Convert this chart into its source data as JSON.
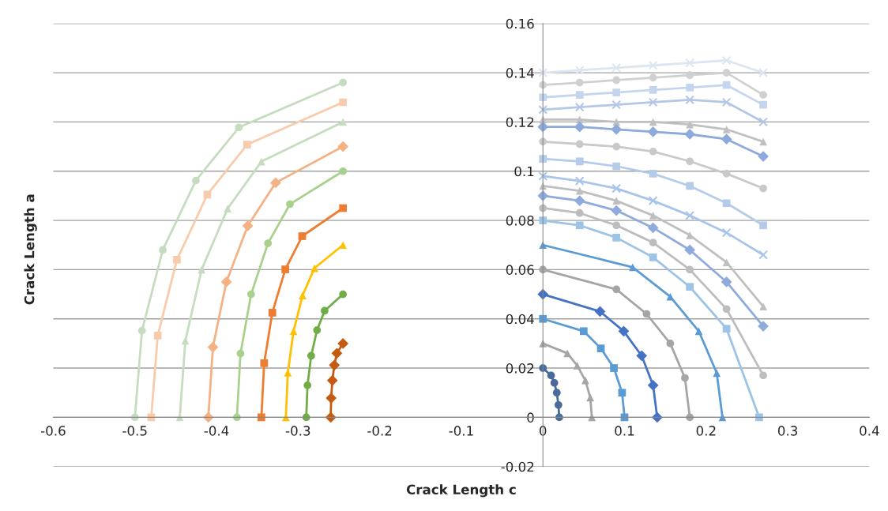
{
  "chart_data": {
    "type": "line",
    "xlabel": "Crack Length c",
    "ylabel": "Crack Length a",
    "xlim": [
      -0.6,
      0.4
    ],
    "xticks": [
      -0.6,
      -0.5,
      -0.4,
      -0.3,
      -0.2,
      -0.1,
      0,
      0.1,
      0.2,
      0.3,
      0.4
    ],
    "ylim": [
      -0.02,
      0.16
    ],
    "yticks": [
      -0.02,
      0,
      0.02,
      0.04,
      0.06,
      0.08,
      0.1,
      0.12,
      0.14,
      0.16
    ],
    "grid": "y",
    "line_style": "solid",
    "series": [
      {
        "color": "#c5dcc0",
        "marker": "circle",
        "x": [
          -0.245,
          -0.3725,
          -0.4253,
          -0.4658,
          -0.4913,
          -0.5
        ],
        "values": [
          0.136,
          0.1178,
          0.0962,
          0.068,
          0.0352,
          0
        ]
      },
      {
        "color": "#f8cbad",
        "marker": "square",
        "x": [
          -0.245,
          -0.3625,
          -0.4112,
          -0.4485,
          -0.472,
          -0.48
        ],
        "values": [
          0.128,
          0.1108,
          0.0905,
          0.064,
          0.0332,
          0
        ]
      },
      {
        "color": "#c5dcc0",
        "marker": "triangle",
        "x": [
          -0.245,
          -0.345,
          -0.3864,
          -0.4182,
          -0.4382,
          -0.445
        ],
        "values": [
          0.12,
          0.1039,
          0.0848,
          0.06,
          0.0311,
          0
        ]
      },
      {
        "color": "#f4b183",
        "marker": "diamond",
        "x": [
          -0.245,
          -0.3275,
          -0.3617,
          -0.3879,
          -0.4044,
          -0.41
        ],
        "values": [
          0.11,
          0.0953,
          0.0778,
          0.055,
          0.0285,
          0
        ]
      },
      {
        "color": "#a9d18e",
        "marker": "circle",
        "x": [
          -0.245,
          -0.31,
          -0.3369,
          -0.3576,
          -0.3706,
          -0.375
        ],
        "values": [
          0.1,
          0.0866,
          0.0707,
          0.05,
          0.0259,
          0
        ]
      },
      {
        "color": "#ed7d31",
        "marker": "square",
        "x": [
          -0.245,
          -0.295,
          -0.3157,
          -0.3316,
          -0.3416,
          -0.345
        ],
        "values": [
          0.085,
          0.0736,
          0.0601,
          0.0425,
          0.022,
          0
        ]
      },
      {
        "color": "#ffc000",
        "marker": "triangle",
        "x": [
          -0.245,
          -0.28,
          -0.2945,
          -0.3056,
          -0.3126,
          -0.315
        ],
        "values": [
          0.07,
          0.0606,
          0.0495,
          0.035,
          0.0181,
          0
        ]
      },
      {
        "color": "#70ad47",
        "marker": "circle",
        "x": [
          -0.245,
          -0.2675,
          -0.2768,
          -0.284,
          -0.2885,
          -0.29
        ],
        "values": [
          0.05,
          0.0433,
          0.0354,
          0.025,
          0.013,
          0
        ]
      },
      {
        "color": "#c55a11",
        "marker": "diamond",
        "x": [
          -0.245,
          -0.2525,
          -0.2556,
          -0.258,
          -0.2595,
          -0.26
        ],
        "values": [
          0.03,
          0.026,
          0.0212,
          0.015,
          0.0078,
          0
        ]
      },
      {
        "color": "#dce6f2",
        "marker": "cross",
        "x": [
          0,
          0.045,
          0.09,
          0.135,
          0.18,
          0.225,
          0.27
        ],
        "values": [
          0.14,
          0.141,
          0.142,
          0.143,
          0.144,
          0.145,
          0.14
        ]
      },
      {
        "color": "#d0d0d0",
        "marker": "circle",
        "x": [
          0,
          0.045,
          0.09,
          0.135,
          0.18,
          0.225,
          0.27
        ],
        "values": [
          0.135,
          0.136,
          0.137,
          0.138,
          0.139,
          0.14,
          0.131
        ]
      },
      {
        "color": "#c5d5ee",
        "marker": "square",
        "x": [
          0,
          0.045,
          0.09,
          0.135,
          0.18,
          0.225,
          0.27
        ],
        "values": [
          0.13,
          0.131,
          0.132,
          0.133,
          0.134,
          0.135,
          0.127
        ]
      },
      {
        "color": "#b4c7e7",
        "marker": "cross",
        "x": [
          0,
          0.045,
          0.09,
          0.135,
          0.18,
          0.225,
          0.27
        ],
        "values": [
          0.125,
          0.126,
          0.127,
          0.128,
          0.129,
          0.128,
          0.12
        ]
      },
      {
        "color": "#c0c0c0",
        "marker": "triangle",
        "x": [
          0,
          0.045,
          0.09,
          0.135,
          0.18,
          0.225,
          0.27
        ],
        "values": [
          0.121,
          0.121,
          0.12,
          0.12,
          0.119,
          0.117,
          0.112
        ]
      },
      {
        "color": "#8ea9db",
        "marker": "diamond",
        "x": [
          0,
          0.045,
          0.09,
          0.135,
          0.18,
          0.225,
          0.27
        ],
        "values": [
          0.118,
          0.118,
          0.117,
          0.116,
          0.115,
          0.113,
          0.106
        ]
      },
      {
        "color": "#c9c9c9",
        "marker": "circle",
        "x": [
          0,
          0.045,
          0.09,
          0.135,
          0.18,
          0.225,
          0.27
        ],
        "values": [
          0.112,
          0.111,
          0.11,
          0.108,
          0.104,
          0.099,
          0.093
        ]
      },
      {
        "color": "#b4cbe9",
        "marker": "square",
        "x": [
          0,
          0.045,
          0.09,
          0.135,
          0.18,
          0.225,
          0.27
        ],
        "values": [
          0.105,
          0.104,
          0.102,
          0.099,
          0.094,
          0.087,
          0.078
        ]
      },
      {
        "color": "#a9c4eb",
        "marker": "cross",
        "x": [
          0,
          0.045,
          0.09,
          0.135,
          0.18,
          0.225,
          0.27
        ],
        "values": [
          0.098,
          0.096,
          0.093,
          0.088,
          0.082,
          0.075,
          0.066
        ]
      },
      {
        "color": "#bfbfbf",
        "marker": "triangle",
        "x": [
          0,
          0.045,
          0.09,
          0.135,
          0.18,
          0.225,
          0.27
        ],
        "values": [
          0.094,
          0.092,
          0.088,
          0.082,
          0.074,
          0.063,
          0.045
        ]
      },
      {
        "color": "#8faadc",
        "marker": "diamond",
        "x": [
          0,
          0.045,
          0.09,
          0.135,
          0.18,
          0.225,
          0.27
        ],
        "values": [
          0.09,
          0.088,
          0.084,
          0.077,
          0.068,
          0.055,
          0.037
        ]
      },
      {
        "color": "#bdbdbd",
        "marker": "circle",
        "x": [
          0,
          0.045,
          0.09,
          0.135,
          0.18,
          0.225,
          0.27
        ],
        "values": [
          0.085,
          0.083,
          0.078,
          0.071,
          0.06,
          0.044,
          0.017
        ]
      },
      {
        "color": "#9dc3e6",
        "marker": "square",
        "x": [
          0,
          0.045,
          0.09,
          0.135,
          0.18,
          0.225,
          0.265
        ],
        "values": [
          0.08,
          0.078,
          0.073,
          0.065,
          0.053,
          0.036,
          0
        ]
      },
      {
        "color": "#5b9bd5",
        "marker": "triangle",
        "x": [
          0,
          0.11,
          0.156,
          0.191,
          0.213,
          0.22
        ],
        "values": [
          0.07,
          0.061,
          0.049,
          0.035,
          0.018,
          0
        ]
      },
      {
        "color": "#a5a5a5",
        "marker": "circle",
        "x": [
          0,
          0.09,
          0.127,
          0.156,
          0.174,
          0.18
        ],
        "values": [
          0.06,
          0.052,
          0.042,
          0.03,
          0.016,
          0
        ]
      },
      {
        "color": "#4472c4",
        "marker": "diamond",
        "x": [
          0,
          0.07,
          0.099,
          0.121,
          0.135,
          0.14
        ],
        "values": [
          0.05,
          0.043,
          0.035,
          0.025,
          0.013,
          0
        ]
      },
      {
        "color": "#5b9bd5",
        "marker": "square",
        "x": [
          0,
          0.05,
          0.071,
          0.087,
          0.097,
          0.1
        ],
        "values": [
          0.04,
          0.035,
          0.028,
          0.02,
          0.01,
          0
        ]
      },
      {
        "color": "#a5a5a5",
        "marker": "triangle",
        "x": [
          0,
          0.03,
          0.042,
          0.052,
          0.058,
          0.06
        ],
        "values": [
          0.03,
          0.026,
          0.021,
          0.015,
          0.008,
          0
        ]
      },
      {
        "color": "#4a6a9a",
        "marker": "circle",
        "x": [
          0,
          0.01,
          0.014,
          0.017,
          0.019,
          0.02
        ],
        "values": [
          0.02,
          0.017,
          0.014,
          0.01,
          0.005,
          0
        ]
      }
    ]
  }
}
